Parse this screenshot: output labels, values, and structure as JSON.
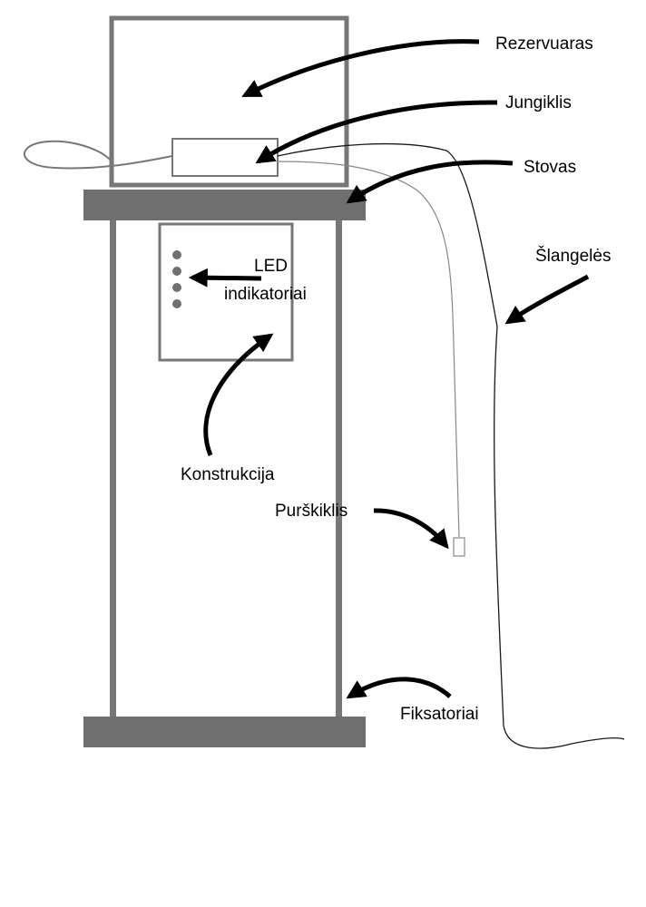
{
  "labels": {
    "reservoir": "Rezervuaras",
    "switch": "Jungiklis",
    "stand": "Stovas",
    "hoses": "Šlangelės",
    "led_line1": "LED",
    "led_line2": "indikatoriai",
    "construction": "Konstrukcija",
    "sprayer": "Purškiklis",
    "fixators": "Fiksatoriai"
  },
  "colors": {
    "frame": "#777777",
    "shelf": "#6f6f6f",
    "led": "#707070",
    "arrow": "#000000",
    "hose": "#1a1a1a",
    "thin_hose": "#888888"
  }
}
